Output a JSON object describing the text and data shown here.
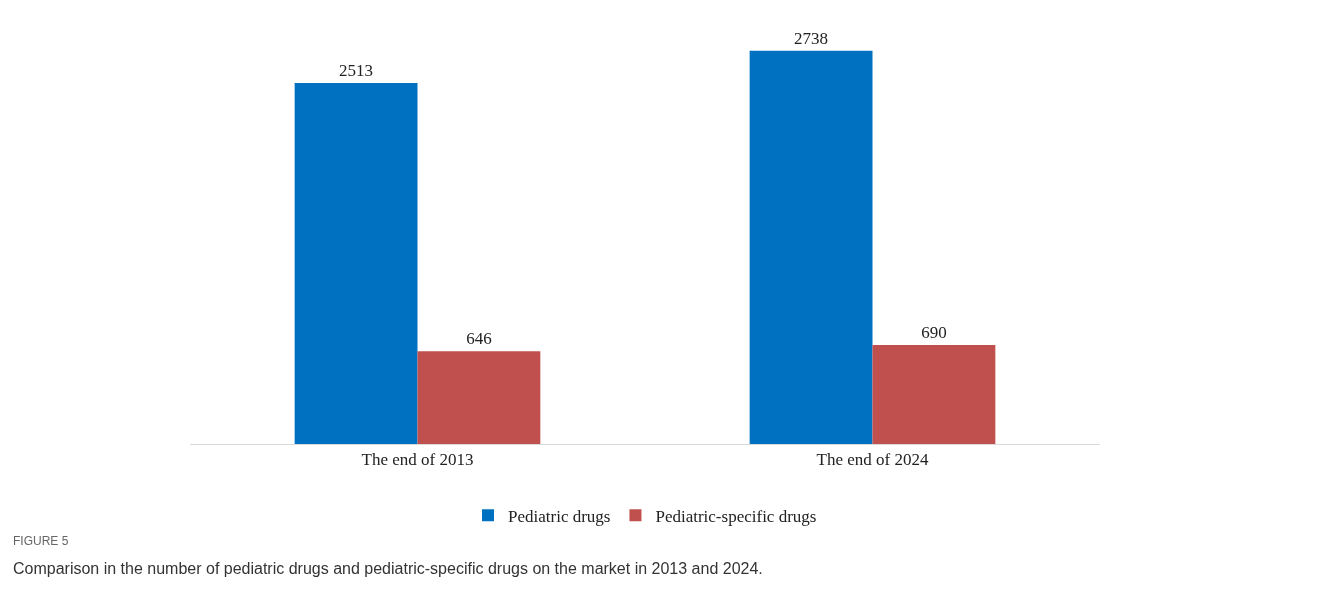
{
  "chart_data": {
    "type": "bar",
    "categories": [
      "The end of 2013",
      "The end of 2024"
    ],
    "series": [
      {
        "name": "Pediatric drugs",
        "color": "#0070c0",
        "values": [
          2513,
          2738
        ]
      },
      {
        "name": "Pediatric-specific drugs",
        "color": "#c0504d",
        "values": [
          646,
          690
        ]
      }
    ],
    "data_labels": true,
    "legend": "bottom",
    "annotations": [
      "FIGURE 5",
      "Comparison in the number of pediatric drugs and pediatric-specific drugs on the market in 2013 and 2024."
    ]
  }
}
